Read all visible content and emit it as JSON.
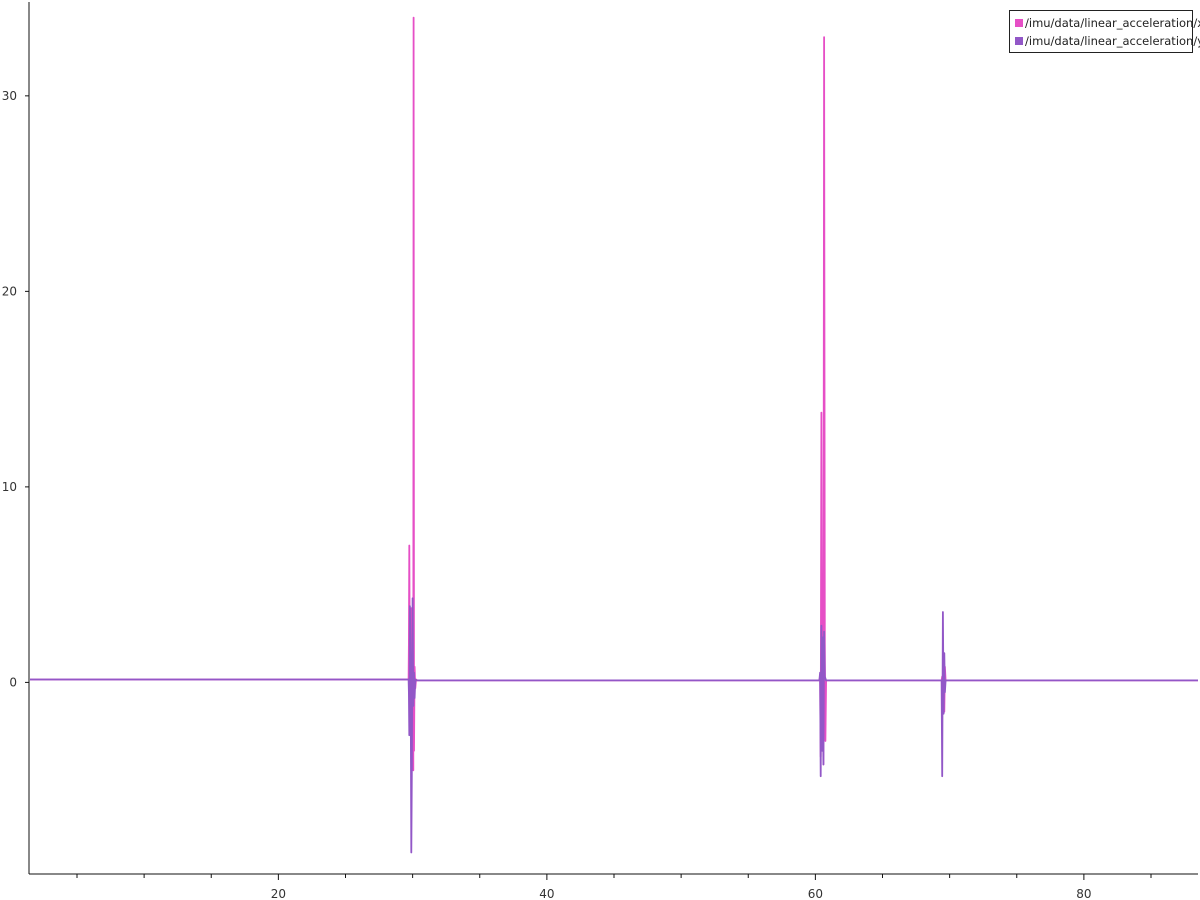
{
  "chart_data": {
    "type": "line",
    "title": "",
    "xlabel": "",
    "ylabel": "",
    "xlim": [
      1.5,
      88.5
    ],
    "ylim": [
      -9.8,
      34.8
    ],
    "xticks": [
      20,
      40,
      60,
      80
    ],
    "yticks": [
      0,
      10,
      20,
      30
    ],
    "x_minor_step": 5,
    "grid": false,
    "legend_position": "top-right",
    "series": [
      {
        "name": "/imu/data/linear_acceleration/x",
        "color": "#e64fc6",
        "x": [
          1.5,
          29.7,
          29.72,
          29.75,
          29.8,
          29.9,
          29.95,
          30.0,
          30.05,
          30.07,
          30.1,
          30.15,
          30.2,
          30.25,
          30.35,
          30.5,
          45,
          60.3,
          60.35,
          60.4,
          60.45,
          60.5,
          60.55,
          60.6,
          60.65,
          60.7,
          60.75,
          60.8,
          60.9,
          69.4,
          69.45,
          69.5,
          69.55,
          69.6,
          69.65,
          69.7,
          69.8,
          88.5
        ],
        "y": [
          0.15,
          0.15,
          2.0,
          7.0,
          -0.5,
          3.8,
          -2.0,
          1.5,
          -4.5,
          34.0,
          -3.5,
          0.8,
          -0.3,
          0.15,
          0.1,
          0.1,
          0.1,
          0.1,
          0.3,
          -3.8,
          13.8,
          -1.5,
          1.2,
          -4.2,
          33.0,
          2.0,
          -3.0,
          0.1,
          0.1,
          0.1,
          0.3,
          -1.0,
          1.3,
          -1.5,
          0.8,
          0.1,
          0.1,
          0.1
        ]
      },
      {
        "name": "/imu/data/linear_acceleration/y",
        "color": "#9257c7",
        "x": [
          1.5,
          29.7,
          29.72,
          29.75,
          29.8,
          29.85,
          29.9,
          29.95,
          30.0,
          30.05,
          30.1,
          30.15,
          30.2,
          30.3,
          30.5,
          45,
          60.3,
          60.35,
          60.4,
          60.45,
          60.5,
          60.55,
          60.6,
          60.65,
          60.7,
          60.8,
          60.9,
          69.4,
          69.45,
          69.5,
          69.55,
          69.6,
          69.65,
          69.7,
          69.8,
          88.5
        ],
        "y": [
          0.15,
          0.15,
          -0.5,
          -2.7,
          3.9,
          1.2,
          -8.7,
          -4.0,
          4.3,
          -1.2,
          0.5,
          -0.8,
          0.15,
          0.1,
          0.1,
          0.1,
          0.1,
          0.5,
          -4.8,
          2.9,
          -3.5,
          2.3,
          -4.2,
          2.6,
          0.3,
          0.1,
          0.1,
          0.1,
          -4.8,
          3.6,
          -1.6,
          1.5,
          -0.5,
          0.1,
          0.1,
          0.1
        ]
      }
    ]
  }
}
